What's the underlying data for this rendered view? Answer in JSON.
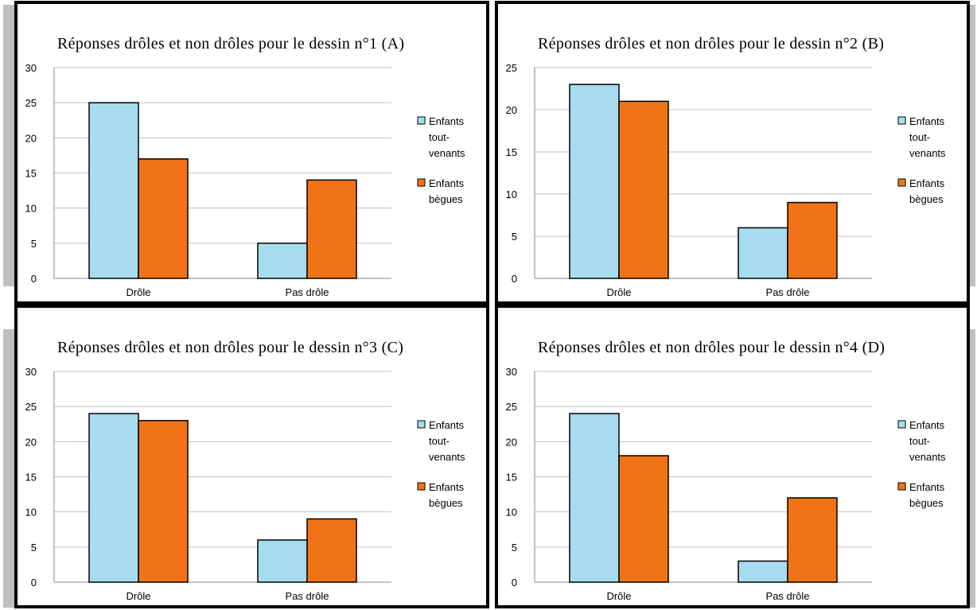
{
  "legend": {
    "series1": [
      "Enfants",
      "tout-",
      "venants"
    ],
    "series2": [
      "Enfants",
      "bègues"
    ]
  },
  "colors": {
    "series1": "#a6dcee",
    "series2": "#f07318",
    "grid": "#bfbfbf"
  },
  "chart_data": [
    {
      "type": "bar",
      "title": "Réponses drôles et non drôles pour le dessin n°1 (A)",
      "categories": [
        "Drôle",
        "Pas drôle"
      ],
      "series": [
        {
          "name": "Enfants tout-venants",
          "values": [
            25,
            5
          ]
        },
        {
          "name": "Enfants bègues",
          "values": [
            17,
            14
          ]
        }
      ],
      "ylim": [
        0,
        30
      ],
      "yticks": [
        0,
        5,
        10,
        15,
        20,
        25,
        30
      ],
      "grid": true,
      "legend_position": "right"
    },
    {
      "type": "bar",
      "title": "Réponses drôles et non drôles pour le dessin n°2 (B)",
      "categories": [
        "Drôle",
        "Pas drôle"
      ],
      "series": [
        {
          "name": "Enfants tout-venants",
          "values": [
            23,
            6
          ]
        },
        {
          "name": "Enfants bègues",
          "values": [
            21,
            9
          ]
        }
      ],
      "ylim": [
        0,
        25
      ],
      "yticks": [
        0,
        5,
        10,
        15,
        20,
        25
      ],
      "grid": true,
      "legend_position": "right"
    },
    {
      "type": "bar",
      "title": "Réponses drôles et non drôles pour le dessin n°3 (C)",
      "categories": [
        "Drôle",
        "Pas drôle"
      ],
      "series": [
        {
          "name": "Enfants tout-venants",
          "values": [
            24,
            6
          ]
        },
        {
          "name": "Enfants bègues",
          "values": [
            23,
            9
          ]
        }
      ],
      "ylim": [
        0,
        30
      ],
      "yticks": [
        0,
        5,
        10,
        15,
        20,
        25,
        30
      ],
      "grid": true,
      "legend_position": "right"
    },
    {
      "type": "bar",
      "title": "Réponses drôles et non drôles pour le dessin n°4 (D)",
      "categories": [
        "Drôle",
        "Pas drôle"
      ],
      "series": [
        {
          "name": "Enfants tout-venants",
          "values": [
            24,
            3
          ]
        },
        {
          "name": "Enfants bègues",
          "values": [
            18,
            12
          ]
        }
      ],
      "ylim": [
        0,
        30
      ],
      "yticks": [
        0,
        5,
        10,
        15,
        20,
        25,
        30
      ],
      "grid": true,
      "legend_position": "right"
    }
  ]
}
